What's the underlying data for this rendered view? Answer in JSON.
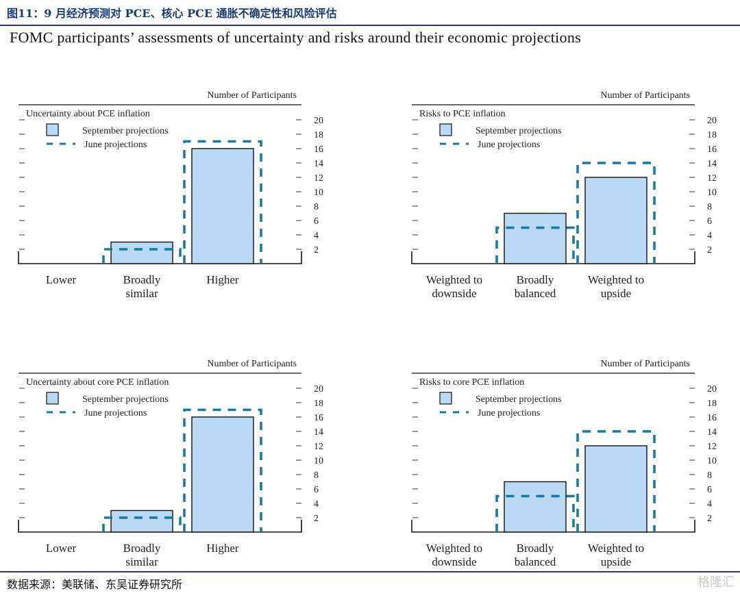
{
  "header": {
    "figure_title": "图11：9 月经济预测对 PCE、核心 PCE 通胀不确定性和风险评估",
    "main_title": "FOMC participants’ assessments of uncertainty and risks around their economic projections"
  },
  "footer": {
    "source": "数据来源：美联储、东吴证券研究所",
    "watermark": "格隆汇"
  },
  "colors": {
    "bar_fill": "#b9d9f5",
    "bar_stroke": "#111111",
    "june_dash": "#1479a6",
    "title_blue": "#1a3a7a"
  },
  "chart_data": [
    {
      "type": "bar",
      "panel_label": "Uncertainty about PCE inflation",
      "axis_title": "Number of Participants",
      "categories": [
        [
          "Lower"
        ],
        [
          "Broadly",
          "similar"
        ],
        [
          "Higher"
        ]
      ],
      "series": [
        {
          "name": "September projections",
          "values": [
            0,
            3,
            16
          ],
          "style": "filled-bar"
        },
        {
          "name": "June projections",
          "values": [
            0,
            2,
            17
          ],
          "style": "dashed-outline"
        }
      ],
      "yticks": [
        2,
        4,
        6,
        8,
        10,
        12,
        14,
        16,
        18,
        20
      ],
      "ylim": [
        0,
        20
      ],
      "legend": "top-left"
    },
    {
      "type": "bar",
      "panel_label": "Risks to PCE inflation",
      "axis_title": "Number of Participants",
      "categories": [
        [
          "Weighted to",
          "downside"
        ],
        [
          "Broadly",
          "balanced"
        ],
        [
          "Weighted to",
          "upside"
        ]
      ],
      "series": [
        {
          "name": "September projections",
          "values": [
            0,
            7,
            12
          ],
          "style": "filled-bar"
        },
        {
          "name": "June projections",
          "values": [
            0,
            5,
            14
          ],
          "style": "dashed-outline"
        }
      ],
      "yticks": [
        2,
        4,
        6,
        8,
        10,
        12,
        14,
        16,
        18,
        20
      ],
      "ylim": [
        0,
        20
      ],
      "legend": "top-left"
    },
    {
      "type": "bar",
      "panel_label": "Uncertainty about core PCE inflation",
      "axis_title": "Number of Participants",
      "categories": [
        [
          "Lower"
        ],
        [
          "Broadly",
          "similar"
        ],
        [
          "Higher"
        ]
      ],
      "series": [
        {
          "name": "September projections",
          "values": [
            0,
            3,
            16
          ],
          "style": "filled-bar"
        },
        {
          "name": "June projections",
          "values": [
            0,
            2,
            17
          ],
          "style": "dashed-outline"
        }
      ],
      "yticks": [
        2,
        4,
        6,
        8,
        10,
        12,
        14,
        16,
        18,
        20
      ],
      "ylim": [
        0,
        20
      ],
      "legend": "top-left"
    },
    {
      "type": "bar",
      "panel_label": "Risks to core PCE inflation",
      "axis_title": "Number of Participants",
      "categories": [
        [
          "Weighted to",
          "downside"
        ],
        [
          "Broadly",
          "balanced"
        ],
        [
          "Weighted to",
          "upside"
        ]
      ],
      "series": [
        {
          "name": "September projections",
          "values": [
            0,
            7,
            12
          ],
          "style": "filled-bar"
        },
        {
          "name": "June projections",
          "values": [
            0,
            5,
            14
          ],
          "style": "dashed-outline"
        }
      ],
      "yticks": [
        2,
        4,
        6,
        8,
        10,
        12,
        14,
        16,
        18,
        20
      ],
      "ylim": [
        0,
        20
      ],
      "legend": "top-left"
    }
  ]
}
